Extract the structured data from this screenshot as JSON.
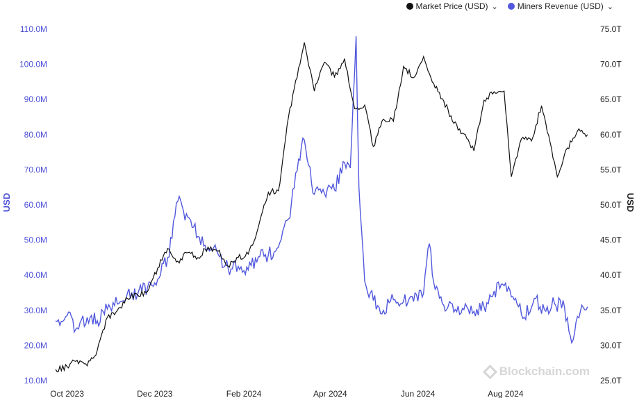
{
  "legend": {
    "market_price_label": "Market Price (USD)",
    "miners_revenue_label": "Miners Revenue (USD)"
  },
  "axes": {
    "left_title": "USD",
    "right_title": "USD"
  },
  "watermark": "Blockchain.com",
  "colors": {
    "market_price": "#111111",
    "miners_revenue": "#5158dd",
    "left_axis_text": "#4d52d8",
    "right_axis_text": "#222222"
  },
  "chart_data": {
    "type": "line",
    "title": "",
    "xlabel": "",
    "ylabel_left": "USD",
    "ylabel_right": "USD",
    "x_ticks": [
      "Oct 2023",
      "Dec 2023",
      "Feb 2024",
      "Apr 2024",
      "Jun 2024",
      "Aug 2024"
    ],
    "y_left_ticks": [
      "10.0M",
      "20.0M",
      "30.0M",
      "40.0M",
      "50.0M",
      "60.0M",
      "70.0M",
      "80.0M",
      "90.0M",
      "100.0M",
      "110.0M"
    ],
    "y_right_ticks": [
      "25.0T",
      "30.0T",
      "35.0T",
      "40.0T",
      "45.0T",
      "50.0T",
      "55.0T",
      "60.0T",
      "65.0T",
      "70.0T",
      "75.0T"
    ],
    "y_left_range": [
      10000000,
      110000000
    ],
    "y_right_range": [
      25,
      75
    ],
    "x_range": [
      "2023-09-23",
      "2024-09-30"
    ],
    "grid": false,
    "legend_position": "top-right",
    "series": [
      {
        "name": "Market Price (USD)",
        "axis": "right",
        "points": [
          [
            "2023-09-23",
            26.6
          ],
          [
            "2023-10-01",
            27.0
          ],
          [
            "2023-10-08",
            27.9
          ],
          [
            "2023-10-15",
            27.1
          ],
          [
            "2023-10-22",
            29.3
          ],
          [
            "2023-10-29",
            34.0
          ],
          [
            "2023-11-05",
            35.0
          ],
          [
            "2023-11-12",
            36.7
          ],
          [
            "2023-11-19",
            37.2
          ],
          [
            "2023-11-26",
            37.7
          ],
          [
            "2023-12-03",
            41.0
          ],
          [
            "2023-12-10",
            43.8
          ],
          [
            "2023-12-17",
            42.0
          ],
          [
            "2023-12-24",
            43.2
          ],
          [
            "2023-12-31",
            42.5
          ],
          [
            "2024-01-07",
            44.0
          ],
          [
            "2024-01-14",
            43.4
          ],
          [
            "2024-01-21",
            41.3
          ],
          [
            "2024-01-28",
            42.5
          ],
          [
            "2024-02-04",
            43.0
          ],
          [
            "2024-02-11",
            46.8
          ],
          [
            "2024-02-18",
            51.8
          ],
          [
            "2024-02-25",
            52.0
          ],
          [
            "2024-03-03",
            62.5
          ],
          [
            "2024-03-10",
            69.5
          ],
          [
            "2024-03-14",
            73.1
          ],
          [
            "2024-03-21",
            66.2
          ],
          [
            "2024-03-28",
            70.3
          ],
          [
            "2024-04-04",
            68.2
          ],
          [
            "2024-04-11",
            70.8
          ],
          [
            "2024-04-18",
            63.7
          ],
          [
            "2024-04-25",
            64.2
          ],
          [
            "2024-05-01",
            58.3
          ],
          [
            "2024-05-08",
            62.2
          ],
          [
            "2024-05-15",
            61.9
          ],
          [
            "2024-05-22",
            69.7
          ],
          [
            "2024-05-29",
            68.1
          ],
          [
            "2024-06-05",
            71.1
          ],
          [
            "2024-06-12",
            67.3
          ],
          [
            "2024-06-19",
            64.8
          ],
          [
            "2024-06-26",
            61.6
          ],
          [
            "2024-07-03",
            60.1
          ],
          [
            "2024-07-10",
            57.7
          ],
          [
            "2024-07-17",
            64.9
          ],
          [
            "2024-07-24",
            66.1
          ],
          [
            "2024-07-31",
            66.2
          ],
          [
            "2024-08-05",
            54.0
          ],
          [
            "2024-08-12",
            59.4
          ],
          [
            "2024-08-19",
            59.1
          ],
          [
            "2024-08-26",
            64.1
          ],
          [
            "2024-09-02",
            58.0
          ],
          [
            "2024-09-06",
            54.0
          ],
          [
            "2024-09-13",
            58.1
          ],
          [
            "2024-09-20",
            60.5
          ],
          [
            "2024-09-27",
            60.0
          ]
        ]
      },
      {
        "name": "Miners Revenue (USD)",
        "axis": "left",
        "points": [
          [
            "2023-09-23",
            27.0
          ],
          [
            "2023-10-01",
            28.5
          ],
          [
            "2023-10-08",
            25.0
          ],
          [
            "2023-10-15",
            28.0
          ],
          [
            "2023-10-22",
            27.1
          ],
          [
            "2023-10-29",
            30.4
          ],
          [
            "2023-11-05",
            31.8
          ],
          [
            "2023-11-12",
            35.0
          ],
          [
            "2023-11-19",
            34.5
          ],
          [
            "2023-11-26",
            36.6
          ],
          [
            "2023-12-03",
            38.8
          ],
          [
            "2023-12-10",
            45.0
          ],
          [
            "2023-12-17",
            61.0
          ],
          [
            "2023-12-24",
            56.5
          ],
          [
            "2023-12-31",
            51.0
          ],
          [
            "2024-01-07",
            47.7
          ],
          [
            "2024-01-14",
            46.0
          ],
          [
            "2024-01-21",
            42.0
          ],
          [
            "2024-01-28",
            42.5
          ],
          [
            "2024-02-04",
            41.5
          ],
          [
            "2024-02-11",
            45.2
          ],
          [
            "2024-02-18",
            45.8
          ],
          [
            "2024-02-25",
            48.0
          ],
          [
            "2024-03-03",
            56.0
          ],
          [
            "2024-03-10",
            73.0
          ],
          [
            "2024-03-14",
            78.5
          ],
          [
            "2024-03-21",
            63.0
          ],
          [
            "2024-03-28",
            63.3
          ],
          [
            "2024-04-04",
            64.2
          ],
          [
            "2024-04-11",
            72.1
          ],
          [
            "2024-04-15",
            70.5
          ],
          [
            "2024-04-19",
            108.0
          ],
          [
            "2024-04-21",
            65.0
          ],
          [
            "2024-04-25",
            38.2
          ],
          [
            "2024-05-01",
            32.8
          ],
          [
            "2024-05-08",
            30.0
          ],
          [
            "2024-05-15",
            33.0
          ],
          [
            "2024-05-22",
            32.5
          ],
          [
            "2024-05-29",
            32.5
          ],
          [
            "2024-06-05",
            34.9
          ],
          [
            "2024-06-09",
            49.0
          ],
          [
            "2024-06-12",
            38.0
          ],
          [
            "2024-06-19",
            31.5
          ],
          [
            "2024-06-26",
            29.5
          ],
          [
            "2024-07-03",
            30.2
          ],
          [
            "2024-07-10",
            29.7
          ],
          [
            "2024-07-17",
            31.0
          ],
          [
            "2024-07-24",
            35.5
          ],
          [
            "2024-07-31",
            37.0
          ],
          [
            "2024-08-07",
            33.0
          ],
          [
            "2024-08-14",
            28.0
          ],
          [
            "2024-08-21",
            33.4
          ],
          [
            "2024-08-28",
            30.2
          ],
          [
            "2024-09-04",
            32.0
          ],
          [
            "2024-09-11",
            30.9
          ],
          [
            "2024-09-16",
            20.8
          ],
          [
            "2024-09-23",
            31.5
          ],
          [
            "2024-09-27",
            31.0
          ]
        ]
      }
    ]
  }
}
